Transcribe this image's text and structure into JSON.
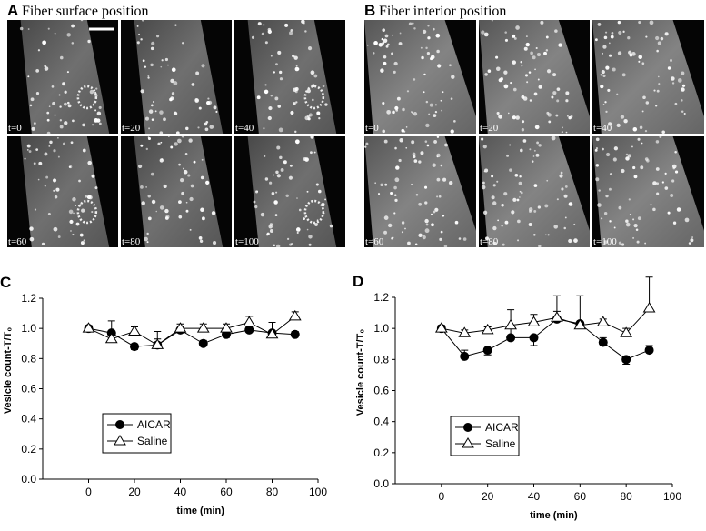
{
  "panels": [
    {
      "label": "A",
      "title": "Fiber surface position",
      "frames": [
        "t=0",
        "t=20",
        "t=40",
        "t=60",
        "t=80",
        "t=100"
      ]
    },
    {
      "label": "B",
      "title": "Fiber interior position",
      "frames": [
        "t=0",
        "t=20",
        "t=40",
        "t=60",
        "t=80",
        "t=100"
      ]
    }
  ],
  "chart_data": [
    {
      "type": "line",
      "label": "C",
      "xlabel": "time (min)",
      "ylabel": "Vesicle count-T/T₀",
      "xlim": [
        -20,
        100
      ],
      "ylim": [
        0,
        1.2
      ],
      "xticks": [
        0,
        20,
        40,
        60,
        80,
        100
      ],
      "yticks": [
        {
          "value": 0,
          "label": "0.0"
        },
        {
          "value": 0.2,
          "label": "0.2"
        },
        {
          "value": 0.4,
          "label": "0.4"
        },
        {
          "value": 0.6,
          "label": "0.6"
        },
        {
          "value": 0.8,
          "label": "0.8"
        },
        {
          "value": 1,
          "label": "1.0"
        },
        {
          "value": 1.2,
          "label": "1.2"
        }
      ],
      "x": [
        0,
        10,
        20,
        30,
        40,
        50,
        60,
        70,
        80,
        90
      ],
      "series": [
        {
          "name": "AICAR",
          "color": "#000000",
          "marker": "circle",
          "values": [
            1.0,
            0.97,
            0.88,
            0.89,
            0.99,
            0.9,
            0.96,
            0.99,
            0.97,
            0.96
          ],
          "errors": [
            0.02,
            0.08,
            0.02,
            0.04,
            0.02,
            0.02,
            0.02,
            0.02,
            0.02,
            0.02
          ]
        },
        {
          "name": "Saline",
          "color": "#000000",
          "marker": "triangle",
          "values": [
            1.0,
            0.93,
            0.98,
            0.89,
            1.0,
            1.0,
            1.0,
            1.04,
            0.96,
            1.08
          ],
          "errors": [
            0.02,
            0.03,
            0.03,
            0.09,
            0.03,
            0.03,
            0.03,
            0.04,
            0.08,
            0.03
          ]
        }
      ]
    },
    {
      "type": "line",
      "label": "D",
      "xlabel": "time (min)",
      "ylabel": "Vesicle count-T/T₀",
      "xlim": [
        -20,
        100
      ],
      "ylim": [
        0,
        1.2
      ],
      "xticks": [
        0,
        20,
        40,
        60,
        80,
        100
      ],
      "yticks": [
        {
          "value": 0,
          "label": "0.0"
        },
        {
          "value": 0.2,
          "label": "0.2"
        },
        {
          "value": 0.4,
          "label": "0.4"
        },
        {
          "value": 0.6,
          "label": "0.6"
        },
        {
          "value": 0.8,
          "label": "0.8"
        },
        {
          "value": 1,
          "label": "1.0"
        },
        {
          "value": 1.2,
          "label": "1.2"
        }
      ],
      "x": [
        0,
        10,
        20,
        30,
        40,
        50,
        60,
        70,
        80,
        90
      ],
      "series": [
        {
          "name": "AICAR",
          "color": "#000000",
          "marker": "circle",
          "values": [
            1.0,
            0.82,
            0.86,
            0.94,
            0.94,
            1.06,
            1.03,
            0.91,
            0.8,
            0.86
          ],
          "errors": [
            0.02,
            0.04,
            0.03,
            0.06,
            0.05,
            0.05,
            0.03,
            0.03,
            0.03,
            0.03
          ]
        },
        {
          "name": "Saline",
          "color": "#000000",
          "marker": "triangle",
          "values": [
            1.0,
            0.97,
            0.99,
            1.02,
            1.04,
            1.07,
            1.02,
            1.04,
            0.97,
            1.13
          ],
          "errors": [
            0.02,
            0.02,
            0.02,
            0.1,
            0.05,
            0.14,
            0.19,
            0.02,
            0.03,
            0.2
          ]
        }
      ]
    }
  ]
}
